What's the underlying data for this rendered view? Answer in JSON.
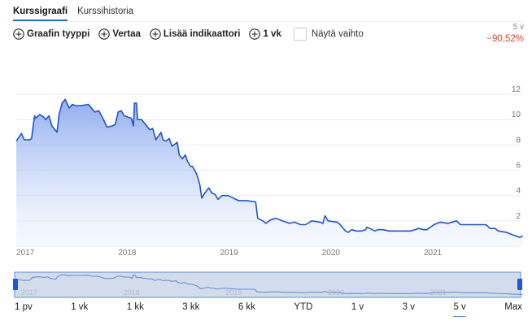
{
  "tabs": [
    {
      "label": "Kurssigraafi",
      "active": true
    },
    {
      "label": "Kurssihistoria",
      "active": false
    }
  ],
  "toolbar": {
    "chart_type": "Graafin tyyppi",
    "compare": "Vertaa",
    "add_indicator": "Lisää indikaattori",
    "interval": "1 vk",
    "show_volume": "Näytä vaihto"
  },
  "change": {
    "period": "5 v",
    "value": "−90,52%",
    "color": "#d9442c"
  },
  "ranges": [
    {
      "label": "1 pv",
      "active": false
    },
    {
      "label": "1 vk",
      "active": false
    },
    {
      "label": "1 kk",
      "active": false
    },
    {
      "label": "3 kk",
      "active": false
    },
    {
      "label": "6 kk",
      "active": false
    },
    {
      "label": "YTD",
      "active": false
    },
    {
      "label": "1 v",
      "active": false
    },
    {
      "label": "3 v",
      "active": false
    },
    {
      "label": "5 v",
      "active": true
    },
    {
      "label": "Max",
      "active": false
    }
  ],
  "colors": {
    "line": "#1f55c9",
    "accent": "#2f6ad9",
    "grid": "#ececec",
    "axis_text": "#777777",
    "navigator_fill": "#d3dcea",
    "navigator_border": "#5b8be0",
    "handle": "#1f55e0"
  },
  "chart_data": {
    "type": "area",
    "title": "",
    "xlabel": "",
    "ylabel": "",
    "ylim": [
      0,
      12
    ],
    "yticks": [
      2,
      4,
      6,
      8,
      10,
      12
    ],
    "xticks": [
      "2017",
      "2018",
      "2019",
      "2020",
      "2021"
    ],
    "grid": true,
    "legend": "none",
    "x_range": [
      2017.0,
      2021.95
    ],
    "points": [
      [
        2017.0,
        8.3
      ],
      [
        2017.05,
        8.9
      ],
      [
        2017.08,
        8.4
      ],
      [
        2017.13,
        8.4
      ],
      [
        2017.15,
        8.5
      ],
      [
        2017.18,
        10.3
      ],
      [
        2017.19,
        10.1
      ],
      [
        2017.23,
        10.4
      ],
      [
        2017.27,
        10.2
      ],
      [
        2017.29,
        10.0
      ],
      [
        2017.32,
        10.3
      ],
      [
        2017.35,
        9.5
      ],
      [
        2017.4,
        9.0
      ],
      [
        2017.42,
        10.4
      ],
      [
        2017.45,
        11.3
      ],
      [
        2017.48,
        11.6
      ],
      [
        2017.52,
        10.9
      ],
      [
        2017.55,
        11.2
      ],
      [
        2017.58,
        11.1
      ],
      [
        2017.63,
        11.1
      ],
      [
        2017.71,
        11.2
      ],
      [
        2017.77,
        10.6
      ],
      [
        2017.81,
        10.7
      ],
      [
        2017.85,
        10.1
      ],
      [
        2017.89,
        9.4
      ],
      [
        2017.94,
        9.5
      ],
      [
        2017.97,
        9.6
      ],
      [
        2018.0,
        10.6
      ],
      [
        2018.03,
        10.7
      ],
      [
        2018.06,
        10.3
      ],
      [
        2018.13,
        10.1
      ],
      [
        2018.15,
        9.5
      ],
      [
        2018.16,
        11.3
      ],
      [
        2018.18,
        11.3
      ],
      [
        2018.19,
        10.0
      ],
      [
        2018.23,
        10.0
      ],
      [
        2018.26,
        9.7
      ],
      [
        2018.31,
        9.2
      ],
      [
        2018.34,
        9.3
      ],
      [
        2018.37,
        8.4
      ],
      [
        2018.42,
        9.0
      ],
      [
        2018.44,
        8.4
      ],
      [
        2018.47,
        8.3
      ],
      [
        2018.5,
        8.5
      ],
      [
        2018.53,
        7.9
      ],
      [
        2018.58,
        8.2
      ],
      [
        2018.6,
        7.2
      ],
      [
        2018.63,
        6.9
      ],
      [
        2018.66,
        7.2
      ],
      [
        2018.68,
        6.7
      ],
      [
        2018.69,
        6.6
      ],
      [
        2018.71,
        6.3
      ],
      [
        2018.73,
        6.3
      ],
      [
        2018.77,
        5.7
      ],
      [
        2018.8,
        4.9
      ],
      [
        2018.82,
        3.8
      ],
      [
        2018.85,
        4.2
      ],
      [
        2018.89,
        4.6
      ],
      [
        2018.92,
        4.2
      ],
      [
        2018.95,
        4.1
      ],
      [
        2018.98,
        3.7
      ],
      [
        2019.02,
        4.0
      ],
      [
        2019.05,
        4.0
      ],
      [
        2019.08,
        4.0
      ],
      [
        2019.13,
        3.8
      ],
      [
        2019.18,
        3.6
      ],
      [
        2019.26,
        3.6
      ],
      [
        2019.35,
        3.5
      ],
      [
        2019.37,
        2.2
      ],
      [
        2019.42,
        2.0
      ],
      [
        2019.45,
        1.8
      ],
      [
        2019.5,
        2.1
      ],
      [
        2019.55,
        2.2
      ],
      [
        2019.58,
        2.1
      ],
      [
        2019.61,
        2.0
      ],
      [
        2019.65,
        1.9
      ],
      [
        2019.68,
        1.8
      ],
      [
        2019.73,
        1.9
      ],
      [
        2019.79,
        1.7
      ],
      [
        2019.84,
        1.7
      ],
      [
        2019.9,
        2.0
      ],
      [
        2019.98,
        1.9
      ],
      [
        2020.01,
        1.8
      ],
      [
        2020.03,
        2.4
      ],
      [
        2020.06,
        2.0
      ],
      [
        2020.15,
        1.9
      ],
      [
        2020.18,
        1.7
      ],
      [
        2020.23,
        1.2
      ],
      [
        2020.26,
        1.1
      ],
      [
        2020.29,
        1.3
      ],
      [
        2020.34,
        1.2
      ],
      [
        2020.39,
        1.2
      ],
      [
        2020.43,
        1.3
      ],
      [
        2020.44,
        1.5
      ],
      [
        2020.47,
        1.4
      ],
      [
        2020.52,
        1.2
      ],
      [
        2020.55,
        1.3
      ],
      [
        2020.6,
        1.3
      ],
      [
        2020.66,
        1.2
      ],
      [
        2020.71,
        1.2
      ],
      [
        2020.76,
        1.2
      ],
      [
        2020.81,
        1.2
      ],
      [
        2020.87,
        1.2
      ],
      [
        2020.95,
        1.4
      ],
      [
        2021.0,
        1.3
      ],
      [
        2021.03,
        1.3
      ],
      [
        2021.1,
        1.7
      ],
      [
        2021.16,
        1.9
      ],
      [
        2021.24,
        1.8
      ],
      [
        2021.32,
        2.0
      ],
      [
        2021.36,
        1.7
      ],
      [
        2021.44,
        1.7
      ],
      [
        2021.52,
        1.7
      ],
      [
        2021.58,
        1.7
      ],
      [
        2021.61,
        1.7
      ],
      [
        2021.65,
        1.4
      ],
      [
        2021.7,
        1.4
      ],
      [
        2021.73,
        1.2
      ],
      [
        2021.81,
        1.1
      ],
      [
        2021.87,
        0.9
      ],
      [
        2021.94,
        0.7
      ],
      [
        2021.97,
        0.8
      ]
    ]
  }
}
